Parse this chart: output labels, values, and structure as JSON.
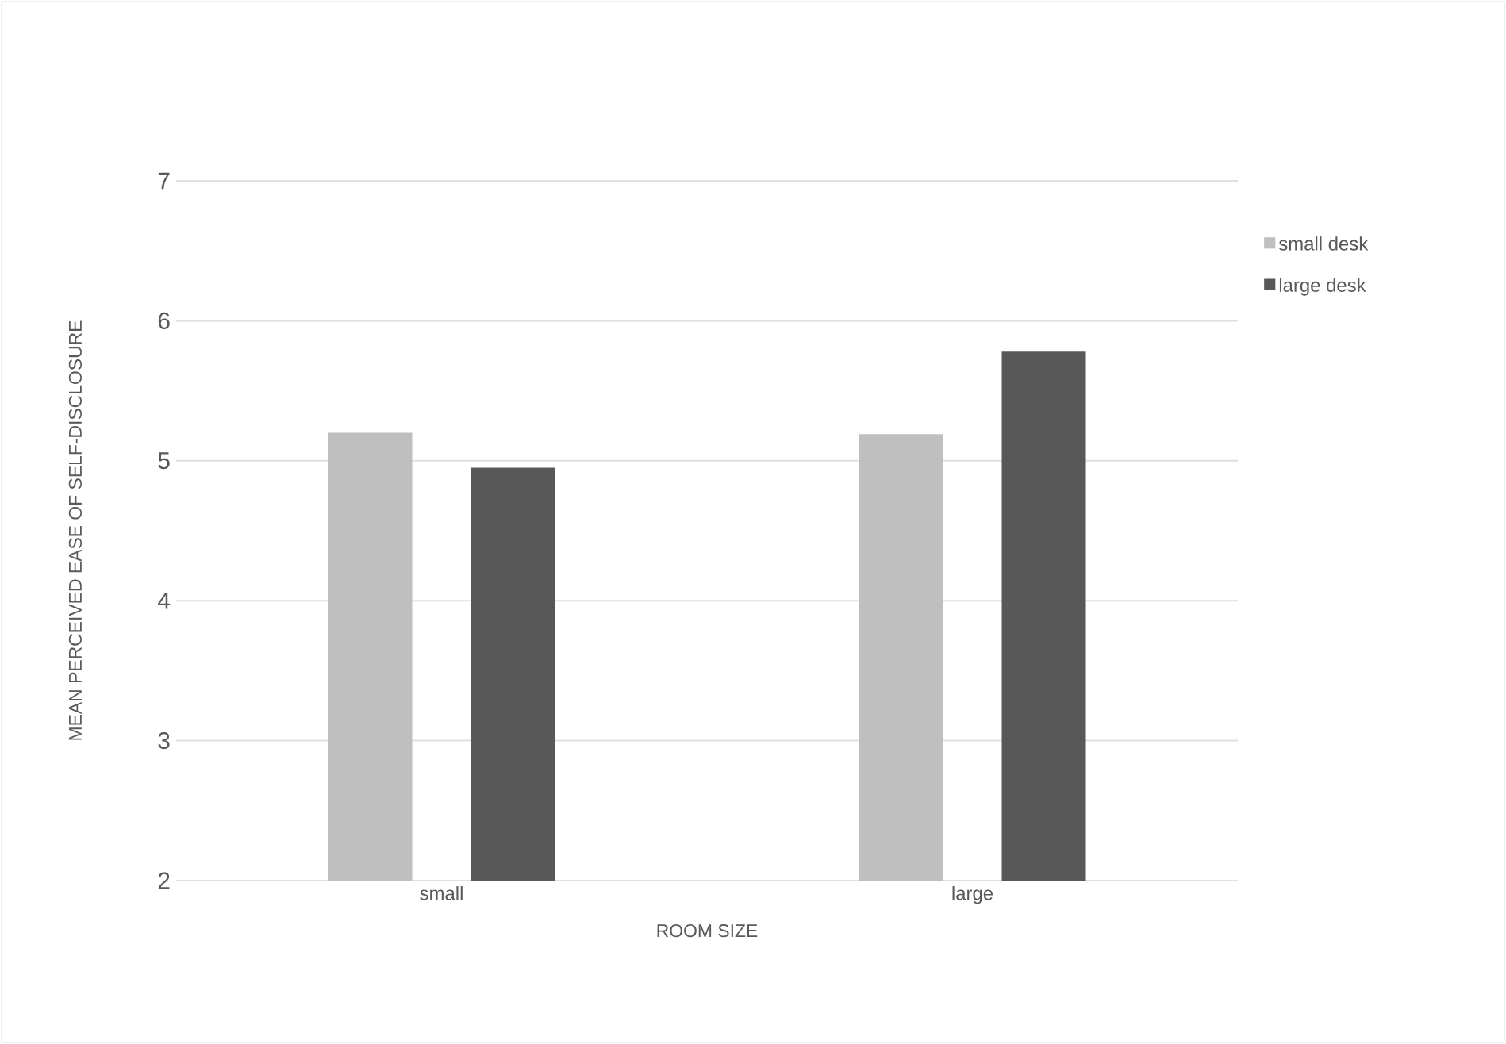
{
  "chart_data": {
    "type": "bar",
    "xlabel": "ROOM SIZE",
    "ylabel": "MEAN PERCEIVED EASE OF SELF-DISCLOSURE",
    "categories": [
      "small",
      "large"
    ],
    "series": [
      {
        "name": "small desk",
        "color": "#bfbfbf",
        "values": [
          5.2,
          5.19
        ]
      },
      {
        "name": "large desk",
        "color": "#585858",
        "values": [
          4.95,
          5.78
        ]
      }
    ],
    "ylim": [
      2,
      7
    ],
    "yticks": [
      2,
      3,
      4,
      5,
      6,
      7
    ],
    "grid": "y",
    "legend": "right"
  }
}
